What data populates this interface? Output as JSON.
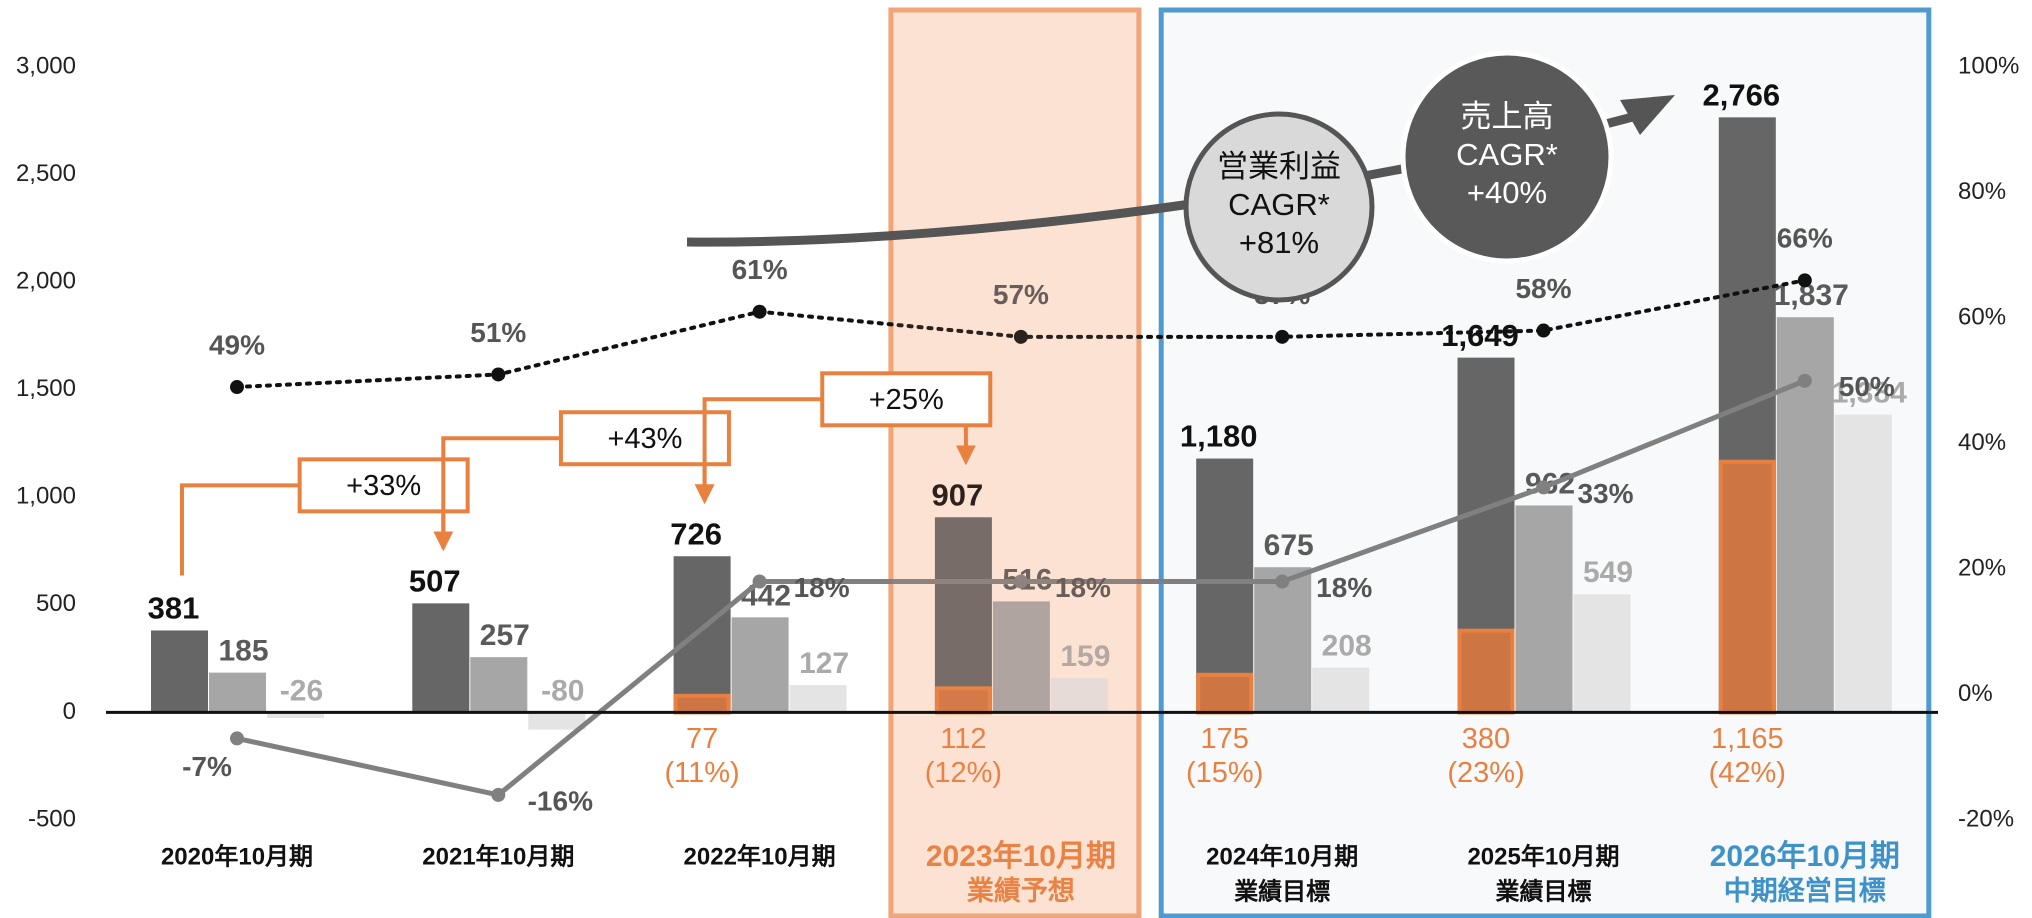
{
  "chart_data": {
    "type": "bar",
    "categories": [
      "2020年10月期",
      "2021年10月期",
      "2022年10月期",
      "2023年10月期",
      "2024年10月期",
      "2025年10月期",
      "2026年10月期"
    ],
    "category_sublabels": [
      null,
      null,
      null,
      "業績予想",
      "業績目標",
      "業績目標",
      "中期経営目標"
    ],
    "forecast_index": 3,
    "target_indices": [
      4,
      5,
      6
    ],
    "goal_index": 6,
    "series": [
      {
        "type": "bar",
        "color": "#666666",
        "values": [
          381,
          507,
          726,
          907,
          1180,
          1649,
          2766
        ],
        "value_labels": [
          "381",
          "507",
          "726",
          "907",
          "1,180",
          "1,649",
          "2,766"
        ]
      },
      {
        "type": "bar",
        "color": "#a6a6a6",
        "values": [
          185,
          257,
          442,
          516,
          675,
          962,
          1837
        ],
        "value_labels": [
          "185",
          "257",
          "442",
          "516",
          "675",
          "962",
          "1,837"
        ]
      },
      {
        "type": "bar",
        "color": "#e4e4e4",
        "values": [
          -26,
          -80,
          127,
          159,
          208,
          549,
          1384
        ],
        "value_labels": [
          "-26",
          "-80",
          "127",
          "159",
          "208",
          "549",
          "1,384"
        ]
      },
      {
        "type": "overlay",
        "color": "#d9783f",
        "values": [
          null,
          null,
          77,
          112,
          175,
          380,
          1165
        ],
        "value_labels": [
          null,
          null,
          "77",
          "112",
          "175",
          "380",
          "1,165"
        ],
        "ratios": [
          null,
          null,
          11,
          12,
          15,
          23,
          42
        ],
        "ratio_labels": [
          null,
          null,
          "(11%)",
          "(12%)",
          "(15%)",
          "(23%)",
          "(42%)"
        ]
      },
      {
        "type": "line",
        "axis": "y2",
        "color": "#808080",
        "style": "solid",
        "values": [
          -7,
          -16,
          18,
          18,
          18,
          33,
          50
        ],
        "value_labels": [
          "-7%",
          "-16%",
          "18%",
          "18%",
          "18%",
          "33%",
          "50%"
        ]
      },
      {
        "type": "line",
        "axis": "y2",
        "color": "#111111",
        "style": "dotted",
        "values": [
          49,
          51,
          61,
          57,
          57,
          58,
          66
        ],
        "value_labels": [
          "49%",
          "51%",
          "61%",
          "57%",
          "57%",
          "58%",
          "66%"
        ]
      }
    ],
    "ylim": [
      -500,
      3000
    ],
    "yticks": [
      -500,
      0,
      500,
      {
        "value": 1000,
        "label": "1,000"
      },
      {
        "value": 1500,
        "label": "1,500"
      },
      {
        "value": 2000,
        "label": "2,000"
      },
      {
        "value": 2500,
        "label": "2,500"
      },
      {
        "value": 3000,
        "label": "3,000"
      }
    ],
    "y2lim": [
      -20,
      100
    ],
    "y2ticks": [
      {
        "value": -20,
        "label": "-20%"
      },
      {
        "value": 0,
        "label": "0%"
      },
      {
        "value": 20,
        "label": "20%"
      },
      {
        "value": 40,
        "label": "40%"
      },
      {
        "value": 60,
        "label": "60%"
      },
      {
        "value": 80,
        "label": "80%"
      },
      {
        "value": 100,
        "label": "100%"
      }
    ],
    "growth_labels": [
      "+33%",
      "+43%",
      "+25%"
    ],
    "cagr_bubbles": [
      {
        "lines": [
          "営業利益",
          "CAGR*",
          "+81%"
        ]
      },
      {
        "lines": [
          "売上高",
          "CAGR*",
          "+40%"
        ]
      }
    ]
  }
}
